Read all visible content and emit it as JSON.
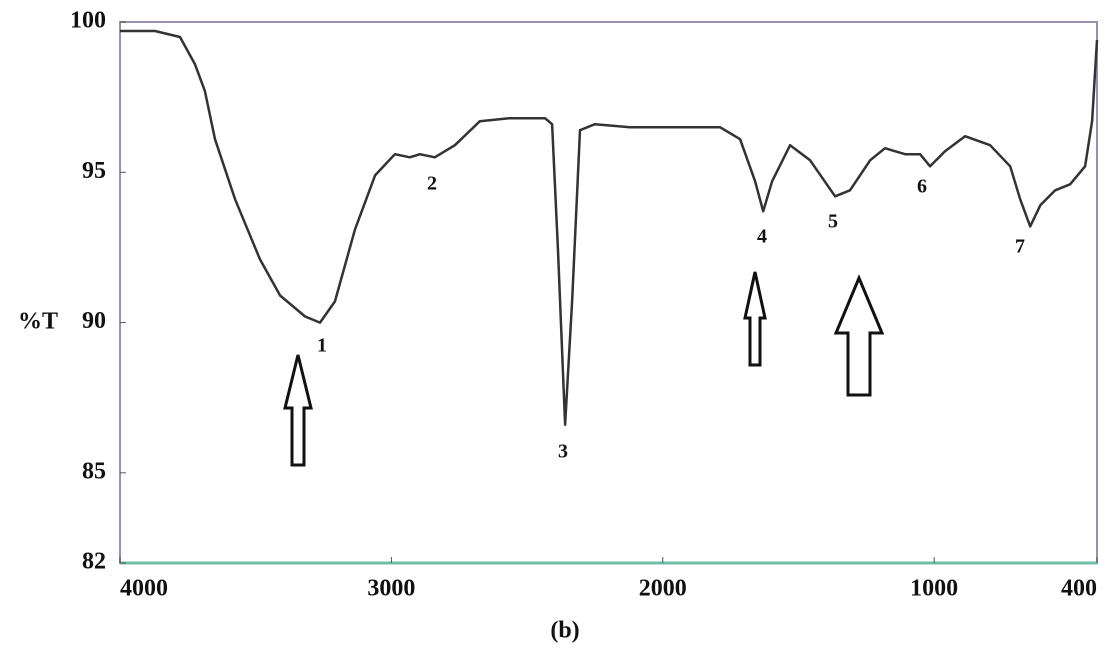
{
  "chart_data": {
    "type": "line",
    "y_label": "%T",
    "caption": "(b)",
    "x": [
      4000,
      3871,
      3779,
      3724,
      3687,
      3650,
      3576,
      3484,
      3410,
      3318,
      3263,
      3208,
      3134,
      3060,
      2987,
      2932,
      2895,
      2840,
      2766,
      2674,
      2563,
      2434,
      2408,
      2386,
      2360,
      2334,
      2305,
      2250,
      2121,
      1900,
      1789,
      1715,
      1660,
      1630,
      1597,
      1531,
      1457,
      1365,
      1310,
      1236,
      1181,
      1107,
      1052,
      1015,
      960,
      886,
      794,
      720,
      683,
      646,
      609,
      554,
      499,
      444,
      418,
      400
    ],
    "values": [
      99.7,
      99.7,
      99.5,
      98.6,
      97.7,
      96.1,
      94.1,
      92.1,
      90.9,
      90.2,
      90.0,
      90.7,
      93.1,
      94.9,
      95.6,
      95.5,
      95.6,
      95.5,
      95.9,
      96.7,
      96.8,
      96.8,
      96.6,
      92.4,
      86.6,
      90.7,
      96.4,
      96.6,
      96.5,
      96.5,
      96.5,
      96.1,
      94.7,
      93.7,
      94.7,
      95.9,
      95.4,
      94.2,
      94.4,
      95.4,
      95.8,
      95.6,
      95.6,
      95.2,
      95.7,
      96.2,
      95.9,
      95.2,
      94.1,
      93.2,
      93.9,
      94.4,
      94.6,
      95.2,
      96.7,
      99.4
    ],
    "color": "#333333",
    "xlim": [
      4000,
      400
    ],
    "xticks": [
      4000,
      3000,
      2000,
      1000,
      400
    ],
    "ylim": [
      82,
      100
    ],
    "yticks": [
      100,
      95,
      90,
      85,
      82
    ],
    "annotations": [
      "1",
      "2",
      "3",
      "4",
      "5",
      "6",
      "7"
    ]
  }
}
